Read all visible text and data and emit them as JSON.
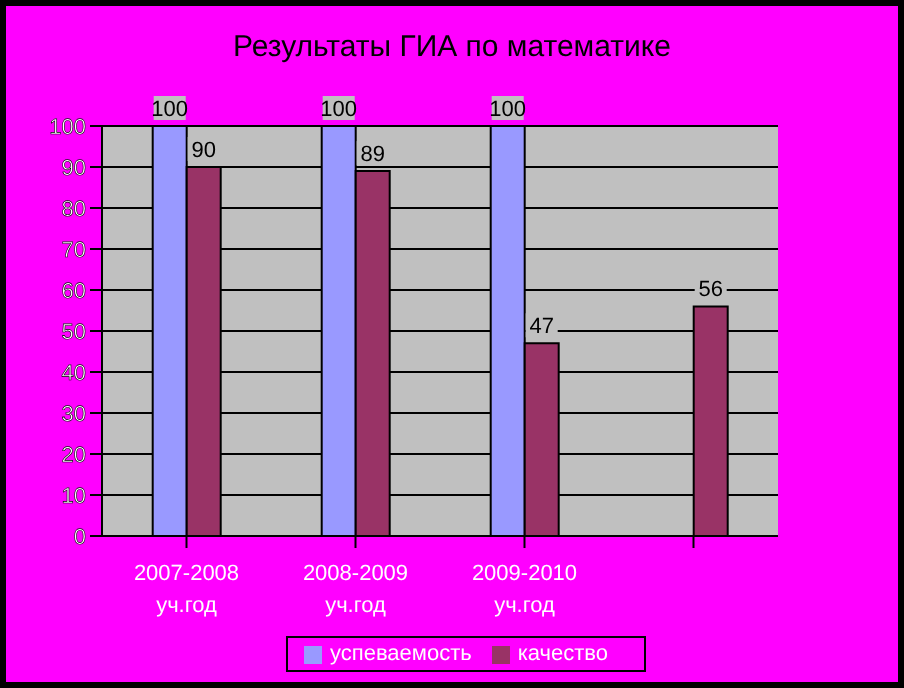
{
  "chart_data": {
    "type": "bar",
    "title": "Результаты ГИА по математике",
    "categories": [
      "2007-2008 уч.год",
      "2008-2009 уч.год",
      "2009-2010 уч.год",
      null
    ],
    "series": [
      {
        "name": "успеваемость",
        "color": "#9999ff",
        "values": [
          100,
          100,
          100,
          null
        ]
      },
      {
        "name": "качество",
        "color": "#993366",
        "values": [
          90,
          89,
          47,
          56
        ]
      }
    ],
    "ylim": [
      0,
      100
    ],
    "yticks": [
      0,
      10,
      20,
      30,
      40,
      50,
      60,
      70,
      80,
      90,
      100
    ],
    "grid": "y",
    "legend": "bottom",
    "data_labels": true
  }
}
